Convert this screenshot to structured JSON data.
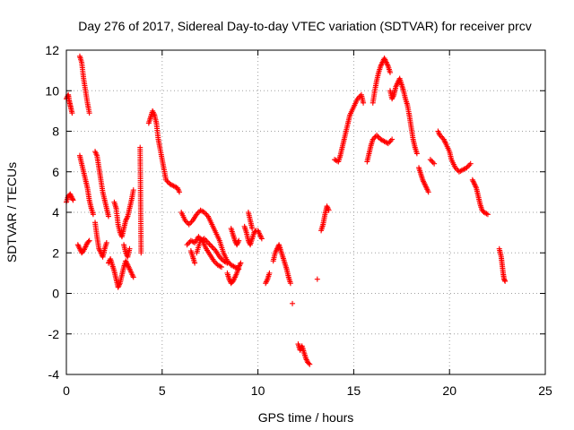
{
  "chart_data": {
    "type": "scatter",
    "title": "Day 276 of 2017, Sidereal Day-to-day VTEC variation (SDTVAR) for receiver prcv",
    "xlabel": "GPS time / hours",
    "ylabel": "SDTVAR / TECUs",
    "xlim": [
      0,
      25
    ],
    "ylim": [
      -4,
      12
    ],
    "xticks": [
      0,
      5,
      10,
      15,
      20,
      25
    ],
    "yticks": [
      -4,
      -2,
      0,
      2,
      4,
      6,
      8,
      10,
      12
    ],
    "grid": true,
    "marker": "plus",
    "color": "#ff0000",
    "series": [
      {
        "name": "SDTVAR",
        "segments": [
          [
            [
              0.0,
              9.6
            ],
            [
              0.1,
              9.8
            ],
            [
              0.15,
              9.5
            ],
            [
              0.2,
              9.3
            ],
            [
              0.25,
              9.1
            ],
            [
              0.3,
              8.9
            ]
          ],
          [
            [
              0.0,
              4.5
            ],
            [
              0.1,
              4.8
            ],
            [
              0.2,
              4.9
            ],
            [
              0.3,
              4.7
            ],
            [
              0.35,
              4.6
            ]
          ],
          [
            [
              0.7,
              11.7
            ],
            [
              0.8,
              11.4
            ],
            [
              0.9,
              10.6
            ],
            [
              1.0,
              10.0
            ],
            [
              1.1,
              9.4
            ],
            [
              1.2,
              8.9
            ]
          ],
          [
            [
              0.7,
              6.8
            ],
            [
              0.8,
              6.4
            ],
            [
              0.9,
              6.0
            ],
            [
              1.0,
              5.6
            ],
            [
              1.1,
              5.2
            ],
            [
              1.2,
              4.6
            ],
            [
              1.3,
              4.2
            ],
            [
              1.4,
              3.9
            ]
          ],
          [
            [
              0.6,
              2.4
            ],
            [
              0.7,
              2.2
            ],
            [
              0.8,
              2.0
            ],
            [
              0.9,
              2.1
            ],
            [
              1.0,
              2.3
            ],
            [
              1.1,
              2.5
            ],
            [
              1.2,
              2.6
            ]
          ],
          [
            [
              1.5,
              7.0
            ],
            [
              1.6,
              6.8
            ],
            [
              1.7,
              6.2
            ],
            [
              1.8,
              5.6
            ],
            [
              1.9,
              5.0
            ],
            [
              2.0,
              4.6
            ],
            [
              2.1,
              4.2
            ],
            [
              2.2,
              3.8
            ]
          ],
          [
            [
              1.5,
              3.5
            ],
            [
              1.6,
              2.8
            ],
            [
              1.7,
              2.2
            ],
            [
              1.8,
              2.0
            ],
            [
              1.9,
              1.8
            ],
            [
              2.0,
              2.2
            ],
            [
              2.1,
              2.5
            ]
          ],
          [
            [
              2.2,
              1.5
            ],
            [
              2.3,
              1.7
            ],
            [
              2.4,
              1.4
            ],
            [
              2.5,
              1.1
            ],
            [
              2.6,
              0.7
            ],
            [
              2.7,
              0.3
            ],
            [
              2.8,
              0.5
            ],
            [
              2.9,
              0.9
            ],
            [
              3.0,
              1.3
            ],
            [
              3.1,
              1.6
            ],
            [
              3.2,
              1.4
            ],
            [
              3.3,
              1.2
            ],
            [
              3.4,
              1.0
            ],
            [
              3.5,
              0.8
            ]
          ],
          [
            [
              2.5,
              4.5
            ],
            [
              2.6,
              4.2
            ],
            [
              2.7,
              3.4
            ],
            [
              2.8,
              3.0
            ],
            [
              2.9,
              2.8
            ],
            [
              3.0,
              3.2
            ],
            [
              3.1,
              3.6
            ],
            [
              3.2,
              3.8
            ],
            [
              3.3,
              4.2
            ],
            [
              3.4,
              4.6
            ],
            [
              3.5,
              5.1
            ]
          ],
          [
            [
              3.0,
              2.4
            ],
            [
              3.1,
              2.0
            ],
            [
              3.2,
              1.8
            ],
            [
              3.3,
              2.2
            ]
          ],
          [
            [
              3.9,
              2.0
            ],
            [
              3.85,
              7.2
            ]
          ],
          [
            [
              4.3,
              8.4
            ],
            [
              4.4,
              8.7
            ],
            [
              4.5,
              9.0
            ],
            [
              4.6,
              8.8
            ],
            [
              4.7,
              8.4
            ],
            [
              4.8,
              7.6
            ],
            [
              4.9,
              7.1
            ],
            [
              5.0,
              6.6
            ],
            [
              5.1,
              6.1
            ],
            [
              5.2,
              5.6
            ],
            [
              5.4,
              5.4
            ],
            [
              5.6,
              5.3
            ],
            [
              5.8,
              5.2
            ],
            [
              5.9,
              5.0
            ]
          ],
          [
            [
              6.0,
              4.0
            ],
            [
              6.2,
              3.6
            ],
            [
              6.4,
              3.4
            ],
            [
              6.6,
              3.6
            ],
            [
              6.8,
              3.9
            ],
            [
              7.0,
              4.1
            ],
            [
              7.2,
              4.0
            ],
            [
              7.4,
              3.8
            ],
            [
              7.6,
              3.4
            ],
            [
              7.8,
              3.0
            ],
            [
              8.0,
              2.6
            ],
            [
              8.2,
              2.0
            ],
            [
              8.4,
              1.6
            ],
            [
              8.6,
              1.4
            ],
            [
              8.8,
              1.3
            ],
            [
              9.0,
              1.2
            ]
          ],
          [
            [
              6.3,
              2.4
            ],
            [
              6.5,
              2.6
            ],
            [
              6.7,
              2.5
            ],
            [
              6.9,
              2.8
            ],
            [
              7.1,
              2.6
            ],
            [
              7.3,
              2.2
            ],
            [
              7.5,
              1.9
            ],
            [
              7.7,
              1.6
            ],
            [
              7.9,
              1.4
            ],
            [
              8.1,
              1.3
            ]
          ],
          [
            [
              6.8,
              2.0
            ],
            [
              7.0,
              2.6
            ],
            [
              7.2,
              2.7
            ],
            [
              7.4,
              2.5
            ],
            [
              7.6,
              2.3
            ],
            [
              7.8,
              2.1
            ],
            [
              8.0,
              1.8
            ],
            [
              8.2,
              1.6
            ],
            [
              8.4,
              1.5
            ]
          ],
          [
            [
              6.5,
              2.1
            ],
            [
              6.6,
              1.8
            ],
            [
              6.7,
              1.5
            ]
          ],
          [
            [
              8.4,
              1.0
            ],
            [
              8.5,
              0.7
            ],
            [
              8.6,
              0.5
            ],
            [
              8.7,
              0.6
            ],
            [
              8.8,
              0.8
            ],
            [
              8.9,
              1.0
            ],
            [
              9.0,
              1.3
            ],
            [
              9.1,
              1.5
            ]
          ],
          [
            [
              8.6,
              3.2
            ],
            [
              8.7,
              2.9
            ],
            [
              8.8,
              2.6
            ],
            [
              8.9,
              2.4
            ],
            [
              9.0,
              2.6
            ]
          ],
          [
            [
              9.3,
              3.3
            ],
            [
              9.4,
              3.0
            ],
            [
              9.5,
              2.6
            ],
            [
              9.6,
              2.4
            ],
            [
              9.7,
              2.7
            ],
            [
              9.8,
              3.0
            ],
            [
              9.9,
              3.1
            ],
            [
              10.0,
              3.1
            ],
            [
              10.1,
              2.9
            ],
            [
              10.2,
              2.7
            ]
          ],
          [
            [
              9.5,
              4.0
            ],
            [
              9.6,
              3.6
            ],
            [
              9.7,
              3.2
            ]
          ],
          [
            [
              10.4,
              0.5
            ],
            [
              10.5,
              0.7
            ],
            [
              10.6,
              1.0
            ]
          ],
          [
            [
              10.8,
              1.6
            ],
            [
              10.9,
              2.0
            ],
            [
              11.0,
              2.2
            ],
            [
              11.1,
              2.4
            ],
            [
              11.2,
              2.1
            ],
            [
              11.3,
              1.8
            ],
            [
              11.4,
              1.5
            ],
            [
              11.5,
              1.2
            ],
            [
              11.6,
              0.8
            ],
            [
              11.7,
              0.5
            ]
          ],
          [
            [
              11.8,
              -0.5
            ]
          ],
          [
            [
              12.1,
              -2.5
            ],
            [
              12.2,
              -2.8
            ],
            [
              12.3,
              -2.6
            ],
            [
              12.4,
              -2.9
            ],
            [
              12.5,
              -3.2
            ],
            [
              12.6,
              -3.4
            ],
            [
              12.7,
              -3.5
            ]
          ],
          [
            [
              13.1,
              0.7
            ]
          ],
          [
            [
              13.3,
              3.1
            ],
            [
              13.4,
              3.4
            ],
            [
              13.5,
              3.9
            ],
            [
              13.6,
              4.3
            ],
            [
              13.7,
              4.1
            ]
          ],
          [
            [
              14.0,
              6.6
            ],
            [
              14.2,
              6.5
            ],
            [
              14.3,
              6.8
            ],
            [
              14.4,
              7.2
            ],
            [
              14.5,
              7.6
            ],
            [
              14.6,
              8.0
            ],
            [
              14.7,
              8.4
            ],
            [
              14.8,
              8.8
            ],
            [
              15.0,
              9.2
            ],
            [
              15.2,
              9.6
            ],
            [
              15.4,
              9.8
            ],
            [
              15.5,
              9.4
            ]
          ],
          [
            [
              15.7,
              6.5
            ],
            [
              15.8,
              6.9
            ],
            [
              15.9,
              7.3
            ],
            [
              16.0,
              7.6
            ],
            [
              16.2,
              7.8
            ],
            [
              16.4,
              7.6
            ],
            [
              16.6,
              7.5
            ],
            [
              16.8,
              7.4
            ],
            [
              17.0,
              7.6
            ]
          ],
          [
            [
              16.0,
              9.4
            ],
            [
              16.1,
              10.0
            ],
            [
              16.2,
              10.5
            ],
            [
              16.3,
              10.9
            ],
            [
              16.4,
              11.2
            ],
            [
              16.5,
              11.4
            ],
            [
              16.6,
              11.6
            ],
            [
              16.7,
              11.4
            ],
            [
              16.8,
              11.2
            ],
            [
              16.9,
              10.9
            ]
          ],
          [
            [
              16.9,
              10.0
            ],
            [
              17.0,
              9.6
            ],
            [
              17.1,
              9.8
            ],
            [
              17.2,
              10.2
            ],
            [
              17.3,
              10.4
            ],
            [
              17.4,
              10.6
            ],
            [
              17.5,
              10.3
            ],
            [
              17.6,
              10.0
            ],
            [
              17.7,
              9.6
            ],
            [
              17.8,
              9.3
            ],
            [
              17.9,
              8.8
            ],
            [
              18.0,
              8.2
            ],
            [
              18.1,
              7.6
            ],
            [
              18.2,
              7.2
            ],
            [
              18.3,
              6.9
            ]
          ],
          [
            [
              18.4,
              6.2
            ],
            [
              18.5,
              5.9
            ],
            [
              18.6,
              5.6
            ],
            [
              18.7,
              5.4
            ],
            [
              18.8,
              5.2
            ],
            [
              18.9,
              5.0
            ]
          ],
          [
            [
              19.0,
              6.6
            ],
            [
              19.2,
              6.4
            ]
          ],
          [
            [
              19.4,
              8.0
            ],
            [
              19.5,
              7.8
            ],
            [
              19.7,
              7.6
            ],
            [
              19.8,
              7.4
            ],
            [
              20.0,
              7.0
            ],
            [
              20.1,
              6.6
            ],
            [
              20.3,
              6.2
            ],
            [
              20.5,
              6.0
            ],
            [
              20.7,
              6.1
            ],
            [
              20.9,
              6.2
            ],
            [
              21.1,
              6.4
            ]
          ],
          [
            [
              21.2,
              5.6
            ],
            [
              21.3,
              5.4
            ],
            [
              21.4,
              5.2
            ],
            [
              21.5,
              4.8
            ],
            [
              21.6,
              4.4
            ],
            [
              21.7,
              4.1
            ],
            [
              21.8,
              4.0
            ],
            [
              22.0,
              3.9
            ]
          ],
          [
            [
              22.6,
              2.2
            ],
            [
              22.7,
              1.8
            ],
            [
              22.75,
              1.4
            ],
            [
              22.8,
              1.0
            ],
            [
              22.85,
              0.7
            ],
            [
              22.9,
              0.6
            ]
          ]
        ]
      }
    ]
  }
}
